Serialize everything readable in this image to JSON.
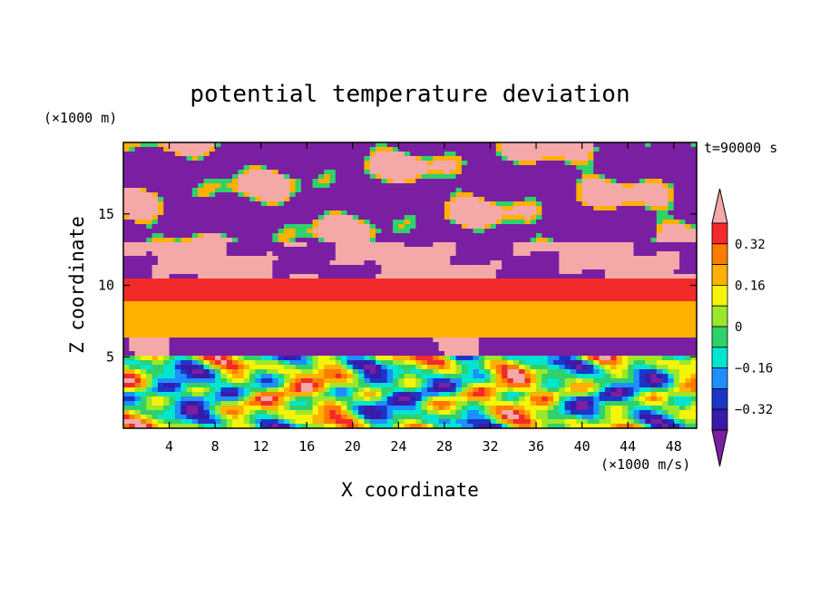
{
  "chart_data": {
    "type": "heatmap",
    "title": "potential temperature deviation",
    "xlabel": "X coordinate",
    "ylabel": "Z coordinate",
    "x_unit": "(×1000 m/s)",
    "y_unit": "(×1000 m)",
    "time_label": "t=90000 s",
    "xlim": [
      0,
      50
    ],
    "ylim": [
      0,
      20
    ],
    "x_ticks": [
      4,
      8,
      12,
      16,
      20,
      24,
      28,
      32,
      36,
      40,
      44,
      48
    ],
    "y_ticks": [
      5,
      10,
      15
    ],
    "colorbar": {
      "levels": [
        -0.4,
        -0.32,
        -0.24,
        -0.16,
        -0.08,
        0,
        0.08,
        0.16,
        0.24,
        0.32,
        0.4
      ],
      "labels": [
        "0.32",
        "0.16",
        "0",
        "−0.16",
        "−0.32"
      ],
      "label_values": [
        0.32,
        0.16,
        0,
        -0.16,
        -0.32
      ],
      "colors": [
        "#7a1fa2",
        "#3a1aa8",
        "#1c35c8",
        "#1e8fff",
        "#00e5d0",
        "#2fd16b",
        "#9be82a",
        "#f4f40a",
        "#ffb000",
        "#ff7a00",
        "#f22a2a",
        "#f4a8a8"
      ]
    },
    "bands": [
      {
        "z": [
          0,
          5
        ],
        "value": 0.0,
        "description_level": "mixed"
      },
      {
        "z": [
          5,
          6
        ],
        "value": -0.45
      },
      {
        "z": [
          6,
          9
        ],
        "value": 0.24
      },
      {
        "z": [
          9,
          10.5
        ],
        "value": 0.35
      },
      {
        "z": [
          10.5,
          13
        ],
        "value": 0.45
      },
      {
        "z": [
          13,
          17
        ],
        "value": -0.45
      },
      {
        "z": [
          17,
          20
        ],
        "value": 0.45
      }
    ]
  }
}
